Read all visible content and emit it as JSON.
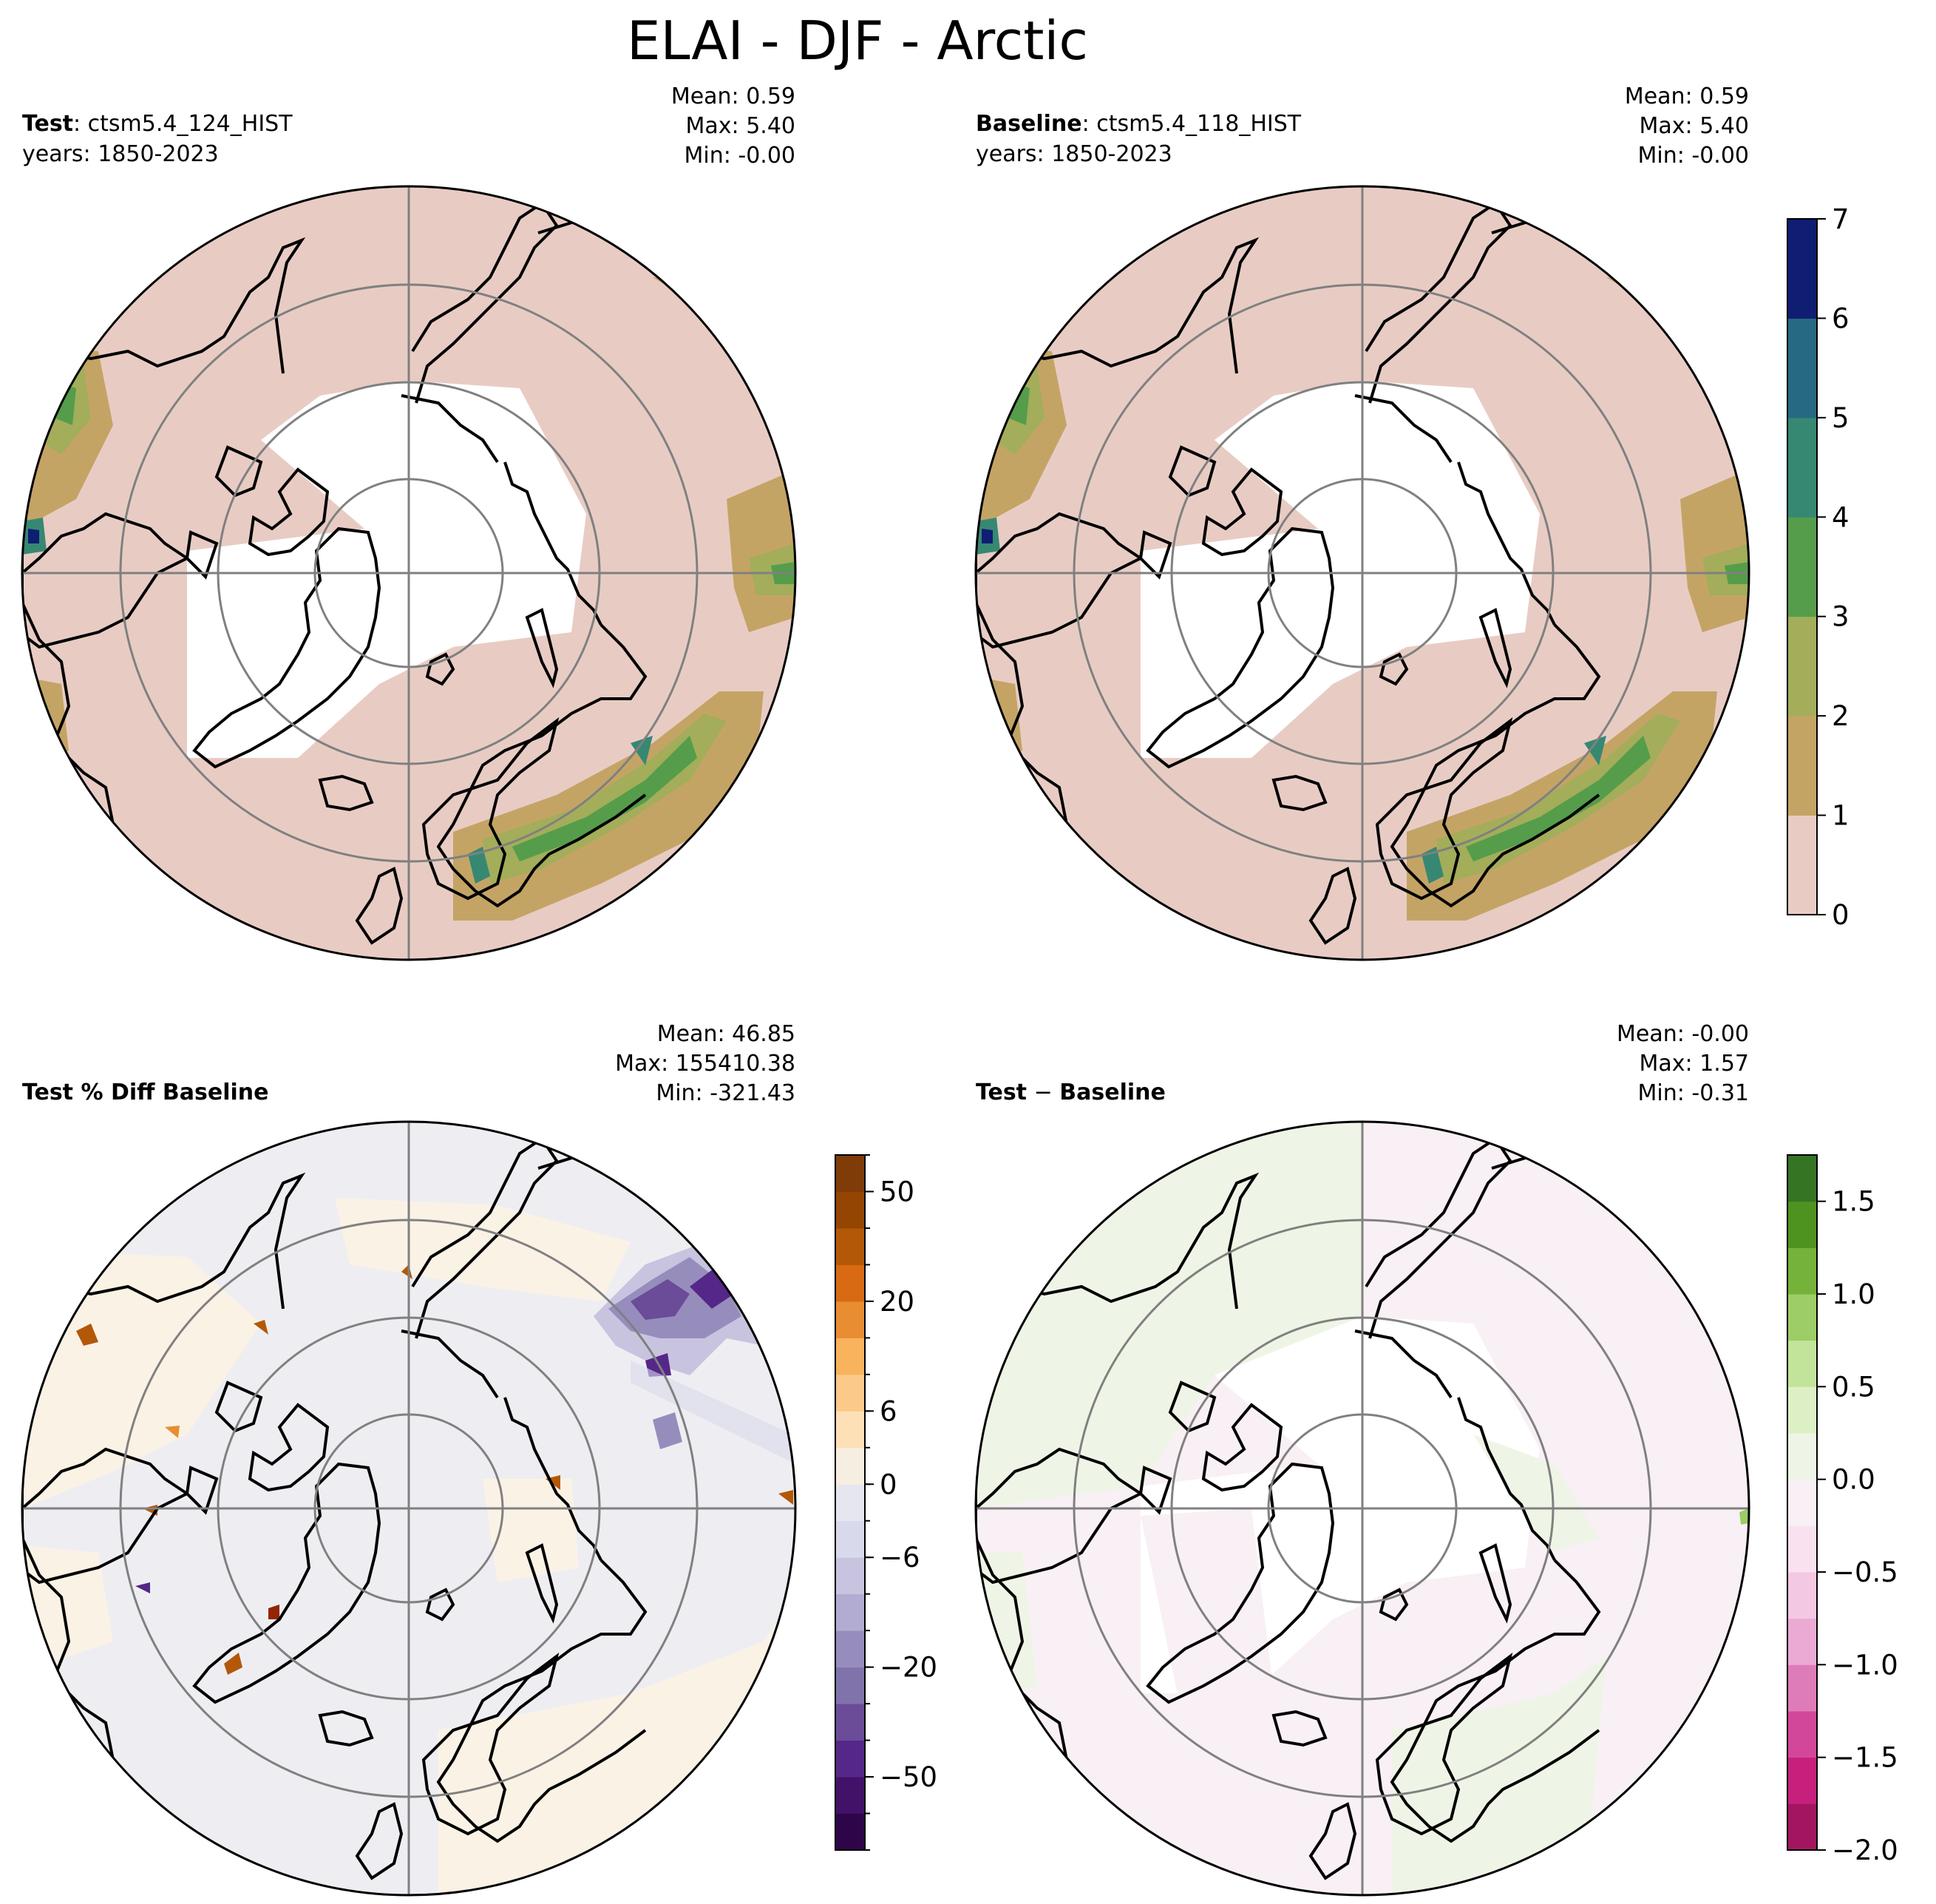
{
  "title": "ELAI - DJF - Arctic",
  "panels": [
    {
      "id": "test",
      "label_bold": "Test",
      "label_rest": ": ctsm5.4_124_HIST",
      "years": "years: 1850-2023",
      "stats": [
        "Mean:  0.59",
        "Max:  5.40",
        "Min: -0.00"
      ]
    },
    {
      "id": "baseline",
      "label_bold": "Baseline",
      "label_rest": ": ctsm5.4_118_HIST",
      "years": "years: 1850-2023",
      "stats": [
        "Mean:  0.59",
        "Max:  5.40",
        "Min: -0.00"
      ]
    },
    {
      "id": "pctdiff",
      "label_bold": "Test % Diff Baseline",
      "label_rest": "",
      "years": "",
      "stats": [
        "Mean: 46.85",
        "Max: 155410.38",
        "Min: -321.43"
      ]
    },
    {
      "id": "diff",
      "label_bold": "Test",
      "label_rest": " − Baseline",
      "label_bold2": "Baseline",
      "years": "",
      "stats": [
        "Mean: -0.00",
        "Max:  1.57",
        "Min: -0.31"
      ]
    }
  ],
  "colorbars": {
    "elai": {
      "ticks": [
        "0",
        "1",
        "2",
        "3",
        "4",
        "5",
        "6",
        "7"
      ],
      "colors": [
        "#e8ccc4",
        "#c4a465",
        "#a3ad5a",
        "#559d4a",
        "#368873",
        "#266982",
        "#0f1d73"
      ]
    },
    "pctdiff": {
      "ticks": [
        "−50",
        "−20",
        "−6",
        "0",
        "6",
        "20",
        "50"
      ],
      "colors": [
        "#2e0548",
        "#421168",
        "#542788",
        "#6a4c98",
        "#8073ac",
        "#978dbd",
        "#b2abd2",
        "#c8c4df",
        "#d8daeb",
        "#e6e6ef",
        "#f6eee0",
        "#fde0b6",
        "#fdc988",
        "#f8b35c",
        "#e98d32",
        "#d76a12",
        "#b35806",
        "#944502",
        "#7f3b08"
      ]
    },
    "diff": {
      "ticks": [
        "−2.0",
        "−1.5",
        "−1.0",
        "−0.5",
        "0.0",
        "0.5",
        "1.0",
        "1.5"
      ],
      "colors": [
        "#a3155f",
        "#c6207c",
        "#d3479a",
        "#de7cb8",
        "#ebaad4",
        "#f3c8e3",
        "#fae1ef",
        "#f8f0f4",
        "#eff5e6",
        "#ddf0c5",
        "#c2e49a",
        "#9ccd66",
        "#75b23a",
        "#4e931f",
        "#347423"
      ]
    }
  },
  "chart_data": {
    "type": "polar map",
    "region": "Arctic",
    "variable": "ELAI",
    "season": "DJF",
    "ranges": {
      "elai": [
        0,
        7
      ],
      "pctdiff": [
        -70,
        70
      ],
      "diff": [
        -2.0,
        1.75
      ]
    }
  }
}
